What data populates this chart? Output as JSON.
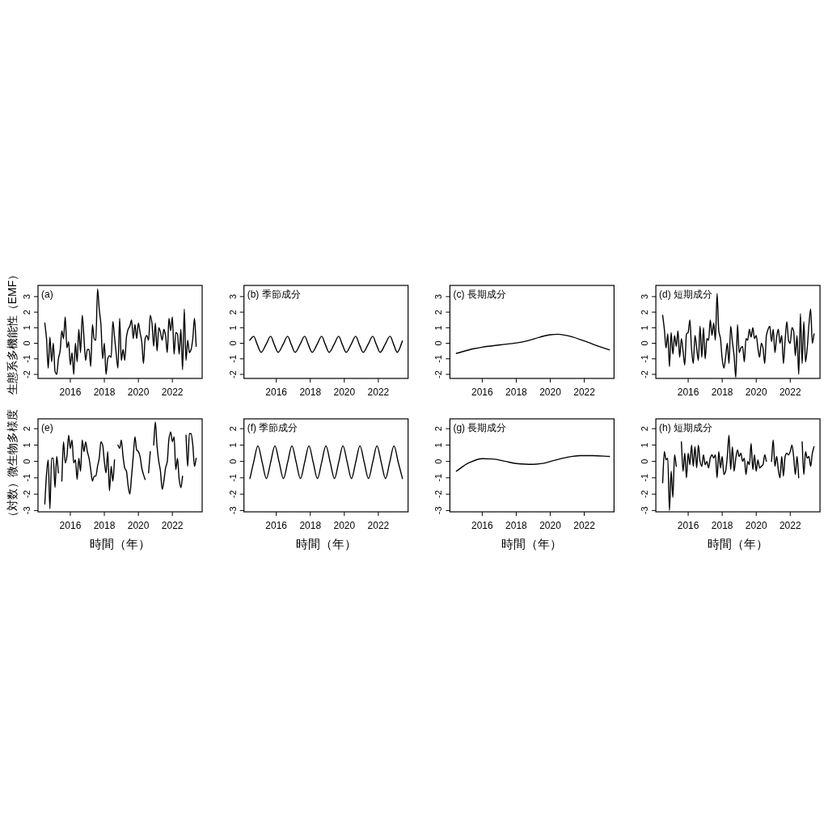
{
  "chart_data": [
    {
      "type": "line",
      "title": "(a)",
      "ylabel": "生態系多機能性（EMF）",
      "color": "#000000",
      "xlim": [
        2014.1,
        2023.75
      ],
      "ylim": [
        -2.26,
        3.72
      ],
      "xticks": [
        2016,
        2018,
        2020,
        2022
      ],
      "yticks": [
        -2,
        -1,
        0,
        1,
        2,
        3
      ],
      "x": [
        2014.5,
        2014.6,
        2014.7,
        2014.8,
        2014.9,
        2015.0,
        2015.1,
        2015.2,
        2015.3,
        2015.4,
        2015.5,
        2015.6,
        2015.7,
        2015.8,
        2015.9,
        2016.0,
        2016.1,
        2016.2,
        2016.3,
        2016.4,
        2016.5,
        2016.6,
        2016.7,
        2016.8,
        2016.9,
        2017.0,
        2017.1,
        2017.2,
        2017.3,
        2017.4,
        2017.5,
        2017.6,
        2017.7,
        2017.8,
        2017.9,
        2018.0,
        2018.1,
        2018.2,
        2018.3,
        2018.4,
        2018.5,
        2018.6,
        2018.7,
        2018.8,
        2018.9,
        2019.0,
        2019.1,
        2019.2,
        2019.3,
        2019.4,
        2019.5,
        2019.6,
        2019.7,
        2019.8,
        2019.9,
        2020.0,
        2020.1,
        2020.2,
        2020.3,
        2020.4,
        2020.5,
        2020.6,
        2020.7,
        2020.8,
        2020.9,
        2021.0,
        2021.1,
        2021.2,
        2021.3,
        2021.4,
        2021.5,
        2021.6,
        2021.7,
        2021.8,
        2021.9,
        2022.0,
        2022.1,
        2022.2,
        2022.3,
        2022.4,
        2022.5,
        2022.6,
        2022.7,
        2022.8,
        2022.9,
        2023.0,
        2023.1,
        2023.2,
        2023.3,
        2023.4
      ],
      "values": [
        1.3,
        0.3,
        -1.6,
        0.4,
        -1.2,
        0.0,
        -1.8,
        -2.0,
        -1.0,
        -0.5,
        0.8,
        0.3,
        1.7,
        -0.3,
        0.1,
        -1.4,
        -0.6,
        -2.0,
        0.0,
        -1.2,
        0.9,
        -0.6,
        1.8,
        0.4,
        -1.1,
        -0.4,
        -0.4,
        -1.5,
        1.2,
        0.3,
        0.2,
        3.5,
        2.2,
        1.2,
        -1.0,
        0.0,
        -2.0,
        -1.0,
        -0.8,
        -0.9,
        1.4,
        0.4,
        -0.7,
        -1.6,
        1.6,
        -1.1,
        -0.4,
        -1.1,
        0.4,
        0.9,
        1.1,
        1.5,
        0.3,
        1.2,
        0.3,
        1.3,
        0.7,
        0.1,
        -1.3,
        0.3,
        0.5,
        0.2,
        1.8,
        1.3,
        -0.2,
        1.3,
        -0.5,
        1.0,
        0.7,
        0.2,
        0.9,
        0.5,
        -0.6,
        1.6,
        0.8,
        1.7,
        -0.7,
        0.7,
        0.6,
        -0.7,
        0.9,
        -1.7,
        2.2,
        -1.1,
        0.2,
        -0.6,
        -0.4,
        0.3,
        1.6,
        -0.2
      ]
    },
    {
      "type": "line",
      "title": "(b) 季節成分",
      "color": "#000000",
      "xlim": [
        2014.1,
        2023.75
      ],
      "ylim": [
        -2.26,
        3.72
      ],
      "xticks": [
        2016,
        2018,
        2020,
        2022
      ],
      "yticks": [
        -2,
        -1,
        0,
        1,
        2,
        3
      ],
      "x": [
        2014.44,
        2014.67,
        2014.88,
        2015.11,
        2015.4,
        2015.67,
        2015.88,
        2016.11,
        2016.4,
        2016.67,
        2016.88,
        2017.11,
        2017.4,
        2017.67,
        2017.88,
        2018.11,
        2018.4,
        2018.67,
        2018.88,
        2019.11,
        2019.4,
        2019.67,
        2019.88,
        2020.11,
        2020.4,
        2020.67,
        2020.88,
        2021.11,
        2021.4,
        2021.67,
        2021.88,
        2022.11,
        2022.4,
        2022.69,
        2022.9,
        2023.11,
        2023.42
      ],
      "values": [
        0.2,
        0.45,
        -0.07,
        -0.58,
        -0.07,
        0.45,
        -0.07,
        -0.58,
        -0.07,
        0.45,
        -0.07,
        -0.58,
        -0.07,
        0.45,
        -0.07,
        -0.58,
        -0.07,
        0.45,
        -0.07,
        -0.58,
        -0.07,
        0.45,
        -0.07,
        -0.58,
        -0.07,
        0.45,
        -0.07,
        -0.58,
        -0.07,
        0.45,
        -0.07,
        -0.58,
        -0.07,
        0.45,
        -0.07,
        -0.58,
        0.15
      ]
    },
    {
      "type": "line",
      "title": "(c) 長期成分",
      "color": "#000000",
      "xlim": [
        2014.1,
        2023.75
      ],
      "ylim": [
        -2.26,
        3.72
      ],
      "xticks": [
        2016,
        2018,
        2020,
        2022
      ],
      "yticks": [
        -2,
        -1,
        0,
        1,
        2,
        3
      ],
      "x": [
        2014.48,
        2015.5,
        2016.0,
        2017.06,
        2018.0,
        2018.63,
        2019.4,
        2020.0,
        2020.42,
        2020.97,
        2022.0,
        2022.86,
        2023.48
      ],
      "values": [
        -0.65,
        -0.35,
        -0.25,
        -0.1,
        0.02,
        0.15,
        0.4,
        0.55,
        0.58,
        0.5,
        0.15,
        -0.2,
        -0.42
      ]
    },
    {
      "type": "line",
      "title": "(d) 短期成分",
      "color": "#000000",
      "xlim": [
        2014.1,
        2023.75
      ],
      "ylim": [
        -2.26,
        3.72
      ],
      "xticks": [
        2016,
        2018,
        2020,
        2022
      ],
      "yticks": [
        -2,
        -1,
        0,
        1,
        2,
        3
      ],
      "x": [
        2014.5,
        2014.6,
        2014.7,
        2014.8,
        2014.9,
        2015.0,
        2015.1,
        2015.2,
        2015.3,
        2015.4,
        2015.5,
        2015.6,
        2015.7,
        2015.8,
        2015.9,
        2016.0,
        2016.1,
        2016.2,
        2016.3,
        2016.4,
        2016.5,
        2016.6,
        2016.7,
        2016.8,
        2016.9,
        2017.0,
        2017.1,
        2017.2,
        2017.3,
        2017.4,
        2017.5,
        2017.6,
        2017.7,
        2017.8,
        2017.9,
        2018.0,
        2018.1,
        2018.2,
        2018.3,
        2018.4,
        2018.5,
        2018.6,
        2018.7,
        2018.8,
        2018.9,
        2019.0,
        2019.1,
        2019.2,
        2019.3,
        2019.4,
        2019.5,
        2019.6,
        2019.7,
        2019.8,
        2019.9,
        2020.0,
        2020.1,
        2020.2,
        2020.3,
        2020.4,
        2020.5,
        2020.6,
        2020.7,
        2020.8,
        2020.9,
        2021.0,
        2021.1,
        2021.2,
        2021.3,
        2021.4,
        2021.5,
        2021.6,
        2021.7,
        2021.8,
        2021.9,
        2022.0,
        2022.1,
        2022.2,
        2022.3,
        2022.4,
        2022.5,
        2022.6,
        2022.7,
        2022.8,
        2022.9,
        2023.0,
        2023.1,
        2023.2,
        2023.3,
        2023.4
      ],
      "values": [
        1.8,
        0.9,
        -0.3,
        0.6,
        -1.5,
        0.7,
        -0.7,
        0.5,
        -0.2,
        0.8,
        -0.9,
        0.3,
        -0.5,
        -1.4,
        0.6,
        0.7,
        1.5,
        -0.4,
        -1.3,
        0.5,
        -0.3,
        -1.1,
        1.1,
        -0.9,
        1.0,
        -1.0,
        0.3,
        0.2,
        1.5,
        0.5,
        1.3,
        0.2,
        3.2,
        0.8,
        0.3,
        -1.0,
        -1.6,
        -0.9,
        0.0,
        -1.3,
        1.1,
        0.1,
        -0.8,
        -2.2,
        1.2,
        -0.6,
        -0.3,
        -0.2,
        -1.2,
        0.3,
        0.2,
        0.9,
        0.4,
        1.0,
        0.3,
        0.5,
        -0.3,
        -0.9,
        0.0,
        -0.3,
        -1.3,
        0.5,
        0.9,
        1.1,
        0.1,
        0.9,
        -0.6,
        0.4,
        0.9,
        0.0,
        0.5,
        -1.3,
        0.2,
        1.4,
        0.2,
        0.0,
        1.0,
        0.8,
        -0.8,
        0.5,
        -2.0,
        1.9,
        -1.3,
        1.4,
        -1.2,
        -0.3,
        1.2,
        2.2,
        0.0,
        0.6
      ]
    },
    {
      "type": "line",
      "title": "(e)",
      "ylabel": "（対数）微生物多様度",
      "xlabel": "時間（年）",
      "xlim": [
        2014.1,
        2023.75
      ],
      "ylim": [
        -3.08,
        2.6
      ],
      "xticks": [
        2016,
        2018,
        2020,
        2022
      ],
      "yticks": [
        -3,
        -2,
        -1,
        0,
        1,
        2
      ],
      "series": [
        {
          "color": "#000000",
          "x": [
            2014.5,
            2014.6,
            2014.7,
            2014.8,
            2014.9,
            2015.0,
            2015.1,
            2015.2,
            2015.3
          ],
          "values": [
            -2.6,
            -0.8,
            0.1,
            -2.9,
            0.2,
            0.2,
            -1.6,
            0.3,
            -0.7
          ]
        },
        {
          "color": "#000000",
          "x": [
            2015.5,
            2015.6,
            2015.7,
            2015.8,
            2015.9,
            2016.0,
            2016.1,
            2016.2,
            2016.3,
            2016.4,
            2016.5,
            2016.6,
            2016.7,
            2016.8,
            2016.9,
            2017.0,
            2017.1,
            2017.2,
            2017.3,
            2017.4,
            2017.5,
            2017.6,
            2017.7,
            2017.8,
            2017.9,
            2018.0,
            2018.1,
            2018.2,
            2018.3,
            2018.4,
            2018.5,
            2018.6
          ],
          "values": [
            -1.2,
            1.2,
            -0.1,
            0.3,
            1.6,
            0.8,
            1.3,
            -0.1,
            0.1,
            -1.1,
            0.2,
            -0.6,
            1.3,
            0.6,
            1.2,
            0.6,
            0.2,
            -0.5,
            -1.2,
            -0.9,
            -0.9,
            -0.3,
            0.2,
            1.2,
            1.0,
            0.0,
            -0.7,
            0.6,
            -1.8,
            -0.3,
            -1.2,
            0.1
          ]
        },
        {
          "color": "#000000",
          "x": [
            2018.8,
            2018.9,
            2019.0,
            2019.1,
            2019.2,
            2019.3,
            2019.4,
            2019.5,
            2019.6,
            2019.7,
            2019.8,
            2019.9,
            2020.0,
            2020.1,
            2020.2,
            2020.3,
            2020.4
          ],
          "values": [
            1.0,
            0.8,
            1.3,
            0.3,
            -0.4,
            -0.6,
            -1.5,
            -2.0,
            -0.9,
            0.3,
            1.5,
            0.7,
            0.6,
            0.3,
            -0.4,
            -0.8,
            -1.1
          ]
        },
        {
          "color": "#000000",
          "x": [
            2020.6,
            2020.7
          ],
          "values": [
            -0.7,
            0.6
          ]
        },
        {
          "color": "#000000",
          "x": [
            2020.9,
            2021.0,
            2021.1,
            2021.2,
            2021.3,
            2021.4,
            2021.5,
            2021.6,
            2021.7,
            2021.8,
            2021.9,
            2022.0,
            2022.1,
            2022.2,
            2022.3,
            2022.4,
            2022.5,
            2022.6
          ],
          "values": [
            1.0,
            2.4,
            0.9,
            0.0,
            -0.6,
            -1.7,
            -1.2,
            -0.4,
            0.0,
            1.4,
            1.8,
            1.2,
            1.5,
            -0.5,
            0.2,
            -1.1,
            -1.6,
            -0.9
          ]
        },
        {
          "color": "#000000",
          "x": [
            2022.8,
            2022.9,
            2023.0,
            2023.1,
            2023.2,
            2023.3,
            2023.4
          ],
          "values": [
            1.6,
            -0.3,
            1.7,
            1.7,
            1.0,
            -0.3,
            0.2
          ]
        }
      ]
    },
    {
      "type": "line",
      "title": "(f) 季節成分",
      "xlabel": "時間（年）",
      "color": "#000000",
      "xlim": [
        2014.1,
        2023.75
      ],
      "ylim": [
        -3.08,
        2.6
      ],
      "xticks": [
        2016,
        2018,
        2020,
        2022
      ],
      "yticks": [
        -3,
        -2,
        -1,
        0,
        1,
        2
      ],
      "x": [
        2014.45,
        2014.67,
        2014.92,
        2015.17,
        2015.42,
        2015.67,
        2015.92,
        2016.17,
        2016.42,
        2016.67,
        2016.92,
        2017.17,
        2017.42,
        2017.67,
        2017.92,
        2018.17,
        2018.42,
        2018.67,
        2018.92,
        2019.17,
        2019.42,
        2019.67,
        2019.92,
        2020.17,
        2020.42,
        2020.67,
        2020.92,
        2021.17,
        2021.42,
        2021.67,
        2021.92,
        2022.17,
        2022.42,
        2022.67,
        2022.92,
        2023.17,
        2023.42
      ],
      "values": [
        -1.05,
        -0.05,
        0.95,
        -0.05,
        -1.05,
        -0.05,
        0.95,
        -0.05,
        -1.05,
        -0.05,
        0.95,
        -0.05,
        -1.05,
        -0.05,
        0.95,
        -0.05,
        -1.05,
        -0.05,
        0.95,
        -0.05,
        -1.05,
        -0.05,
        0.95,
        -0.05,
        -1.05,
        -0.05,
        0.95,
        -0.05,
        -1.05,
        -0.05,
        0.95,
        -0.05,
        -1.05,
        -0.05,
        0.95,
        -0.05,
        -1.05
      ]
    },
    {
      "type": "line",
      "title": "(g) 長期成分",
      "xlabel": "時間（年）",
      "color": "#000000",
      "xlim": [
        2014.1,
        2023.75
      ],
      "ylim": [
        -3.08,
        2.6
      ],
      "xticks": [
        2016,
        2018,
        2020,
        2022
      ],
      "yticks": [
        -3,
        -2,
        -1,
        0,
        1,
        2
      ],
      "x": [
        2014.48,
        2015.19,
        2016.0,
        2016.6,
        2017.4,
        2018.0,
        2018.94,
        2019.56,
        2020.19,
        2020.97,
        2021.75,
        2022.53,
        2023.48
      ],
      "values": [
        -0.6,
        -0.1,
        0.17,
        0.15,
        0.0,
        -0.13,
        -0.18,
        -0.12,
        0.05,
        0.25,
        0.35,
        0.35,
        0.3
      ]
    },
    {
      "type": "line",
      "title": "(h) 短期成分",
      "xlabel": "時間（年）",
      "xlim": [
        2014.1,
        2023.75
      ],
      "ylim": [
        -3.08,
        2.6
      ],
      "xticks": [
        2016,
        2018,
        2020,
        2022
      ],
      "yticks": [
        -3,
        -2,
        -1,
        0,
        1,
        2
      ],
      "series": [
        {
          "color": "#000000",
          "x": [
            2014.5,
            2014.6,
            2014.7,
            2014.8,
            2014.9,
            2015.0,
            2015.1,
            2015.2,
            2015.3
          ],
          "values": [
            -1.3,
            0.6,
            0.1,
            0.2,
            -3.0,
            -0.6,
            -2.2,
            0.4,
            -0.3
          ]
        },
        {
          "color": "#000000",
          "x": [
            2015.6,
            2015.7,
            2015.8,
            2015.9,
            2016.0,
            2016.1,
            2016.2,
            2016.3,
            2016.4,
            2016.5,
            2016.6,
            2016.7,
            2016.8,
            2016.9,
            2017.0,
            2017.1,
            2017.2,
            2017.3,
            2017.4,
            2017.5,
            2017.6,
            2017.7,
            2017.8,
            2017.9,
            2018.0,
            2018.1,
            2018.2,
            2018.3,
            2018.4,
            2018.5,
            2018.6,
            2018.7,
            2018.8,
            2018.9,
            2019.0,
            2019.1,
            2019.2,
            2019.3,
            2019.4,
            2019.5,
            2019.6,
            2019.7,
            2019.8,
            2019.9,
            2020.0,
            2020.1,
            2020.2,
            2020.3,
            2020.4,
            2020.5,
            2020.6
          ],
          "values": [
            1.2,
            -0.6,
            0.5,
            -1.0,
            0.5,
            -0.2,
            1.0,
            -0.3,
            0.9,
            -0.4,
            1.0,
            0.0,
            -0.3,
            0.4,
            -0.2,
            0.0,
            -0.4,
            0.2,
            0.4,
            0.2,
            0.4,
            -1.0,
            0.6,
            -0.4,
            0.3,
            -0.8,
            -0.6,
            0.3,
            1.6,
            -0.5,
            0.9,
            -0.6,
            0.2,
            0.7,
            0.3,
            0.5,
            0.0,
            0.2,
            -0.8,
            0.0,
            -0.2,
            1.1,
            -0.5,
            0.4,
            -0.6,
            0.1,
            -0.4,
            -0.3,
            -0.2,
            0.4,
            0.0
          ]
        },
        {
          "color": "#000000",
          "x": [
            2020.9,
            2021.0,
            2021.1,
            2021.2,
            2021.3,
            2021.4,
            2021.5,
            2021.6,
            2021.7,
            2021.8,
            2021.9,
            2022.0,
            2022.1,
            2022.2,
            2022.3,
            2022.4,
            2022.5
          ],
          "values": [
            0.0,
            1.3,
            -0.3,
            0.3,
            -0.5,
            -1.0,
            0.3,
            -0.9,
            0.3,
            0.5,
            0.4,
            0.6,
            1.0,
            0.3,
            -0.8,
            0.3,
            -1.0
          ]
        },
        {
          "color": "#000000",
          "x": [
            2022.7,
            2022.8,
            2022.9,
            2023.0,
            2023.1,
            2023.2,
            2023.3,
            2023.4
          ],
          "values": [
            1.2,
            -0.8,
            0.6,
            0.2,
            0.3,
            -0.3,
            0.5,
            0.9
          ]
        }
      ]
    }
  ]
}
